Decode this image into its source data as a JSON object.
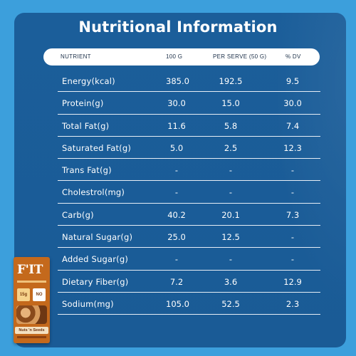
{
  "title": "Nutritional Information",
  "headers": {
    "nutrient": "NUTRIENT",
    "per100": "100 G",
    "perServe": "PER SERVE (50 G)",
    "dv": "% DV"
  },
  "rows": [
    {
      "name": "Energy(kcal)",
      "per100": "385.0",
      "perServe": "192.5",
      "dv": "9.5"
    },
    {
      "name": "Protein(g)",
      "per100": "30.0",
      "perServe": "15.0",
      "dv": "30.0"
    },
    {
      "name": "Total Fat(g)",
      "per100": "11.6",
      "perServe": "5.8",
      "dv": "7.4"
    },
    {
      "name": "Saturated Fat(g)",
      "per100": "5.0",
      "perServe": "2.5",
      "dv": "12.3"
    },
    {
      "name": "Trans Fat(g)",
      "per100": "-",
      "perServe": "-",
      "dv": "-"
    },
    {
      "name": "Cholestrol(mg)",
      "per100": "-",
      "perServe": "-",
      "dv": "-"
    },
    {
      "name": "Carb(g)",
      "per100": "40.2",
      "perServe": "20.1",
      "dv": "7.3"
    },
    {
      "name": "Natural Sugar(g)",
      "per100": "25.0",
      "perServe": "12.5",
      "dv": "-"
    },
    {
      "name": "Added Sugar(g)",
      "per100": "-",
      "perServe": "-",
      "dv": "-"
    },
    {
      "name": "Dietary Fiber(g)",
      "per100": "7.2",
      "perServe": "3.6",
      "dv": "12.9"
    },
    {
      "name": "Sodium(mg)",
      "per100": "105.0",
      "perServe": "52.5",
      "dv": "2.3"
    }
  ],
  "product": {
    "logo": "F'IT",
    "badge_left": "15g",
    "badge_right": "NO",
    "flavor": "Nuts 'n Seeds"
  },
  "colors": {
    "background": "#3c9fdc",
    "panel": "#1b5e9a",
    "header_bg": "#ffffff",
    "text": "#ffffff",
    "pack": "#c4691c"
  }
}
